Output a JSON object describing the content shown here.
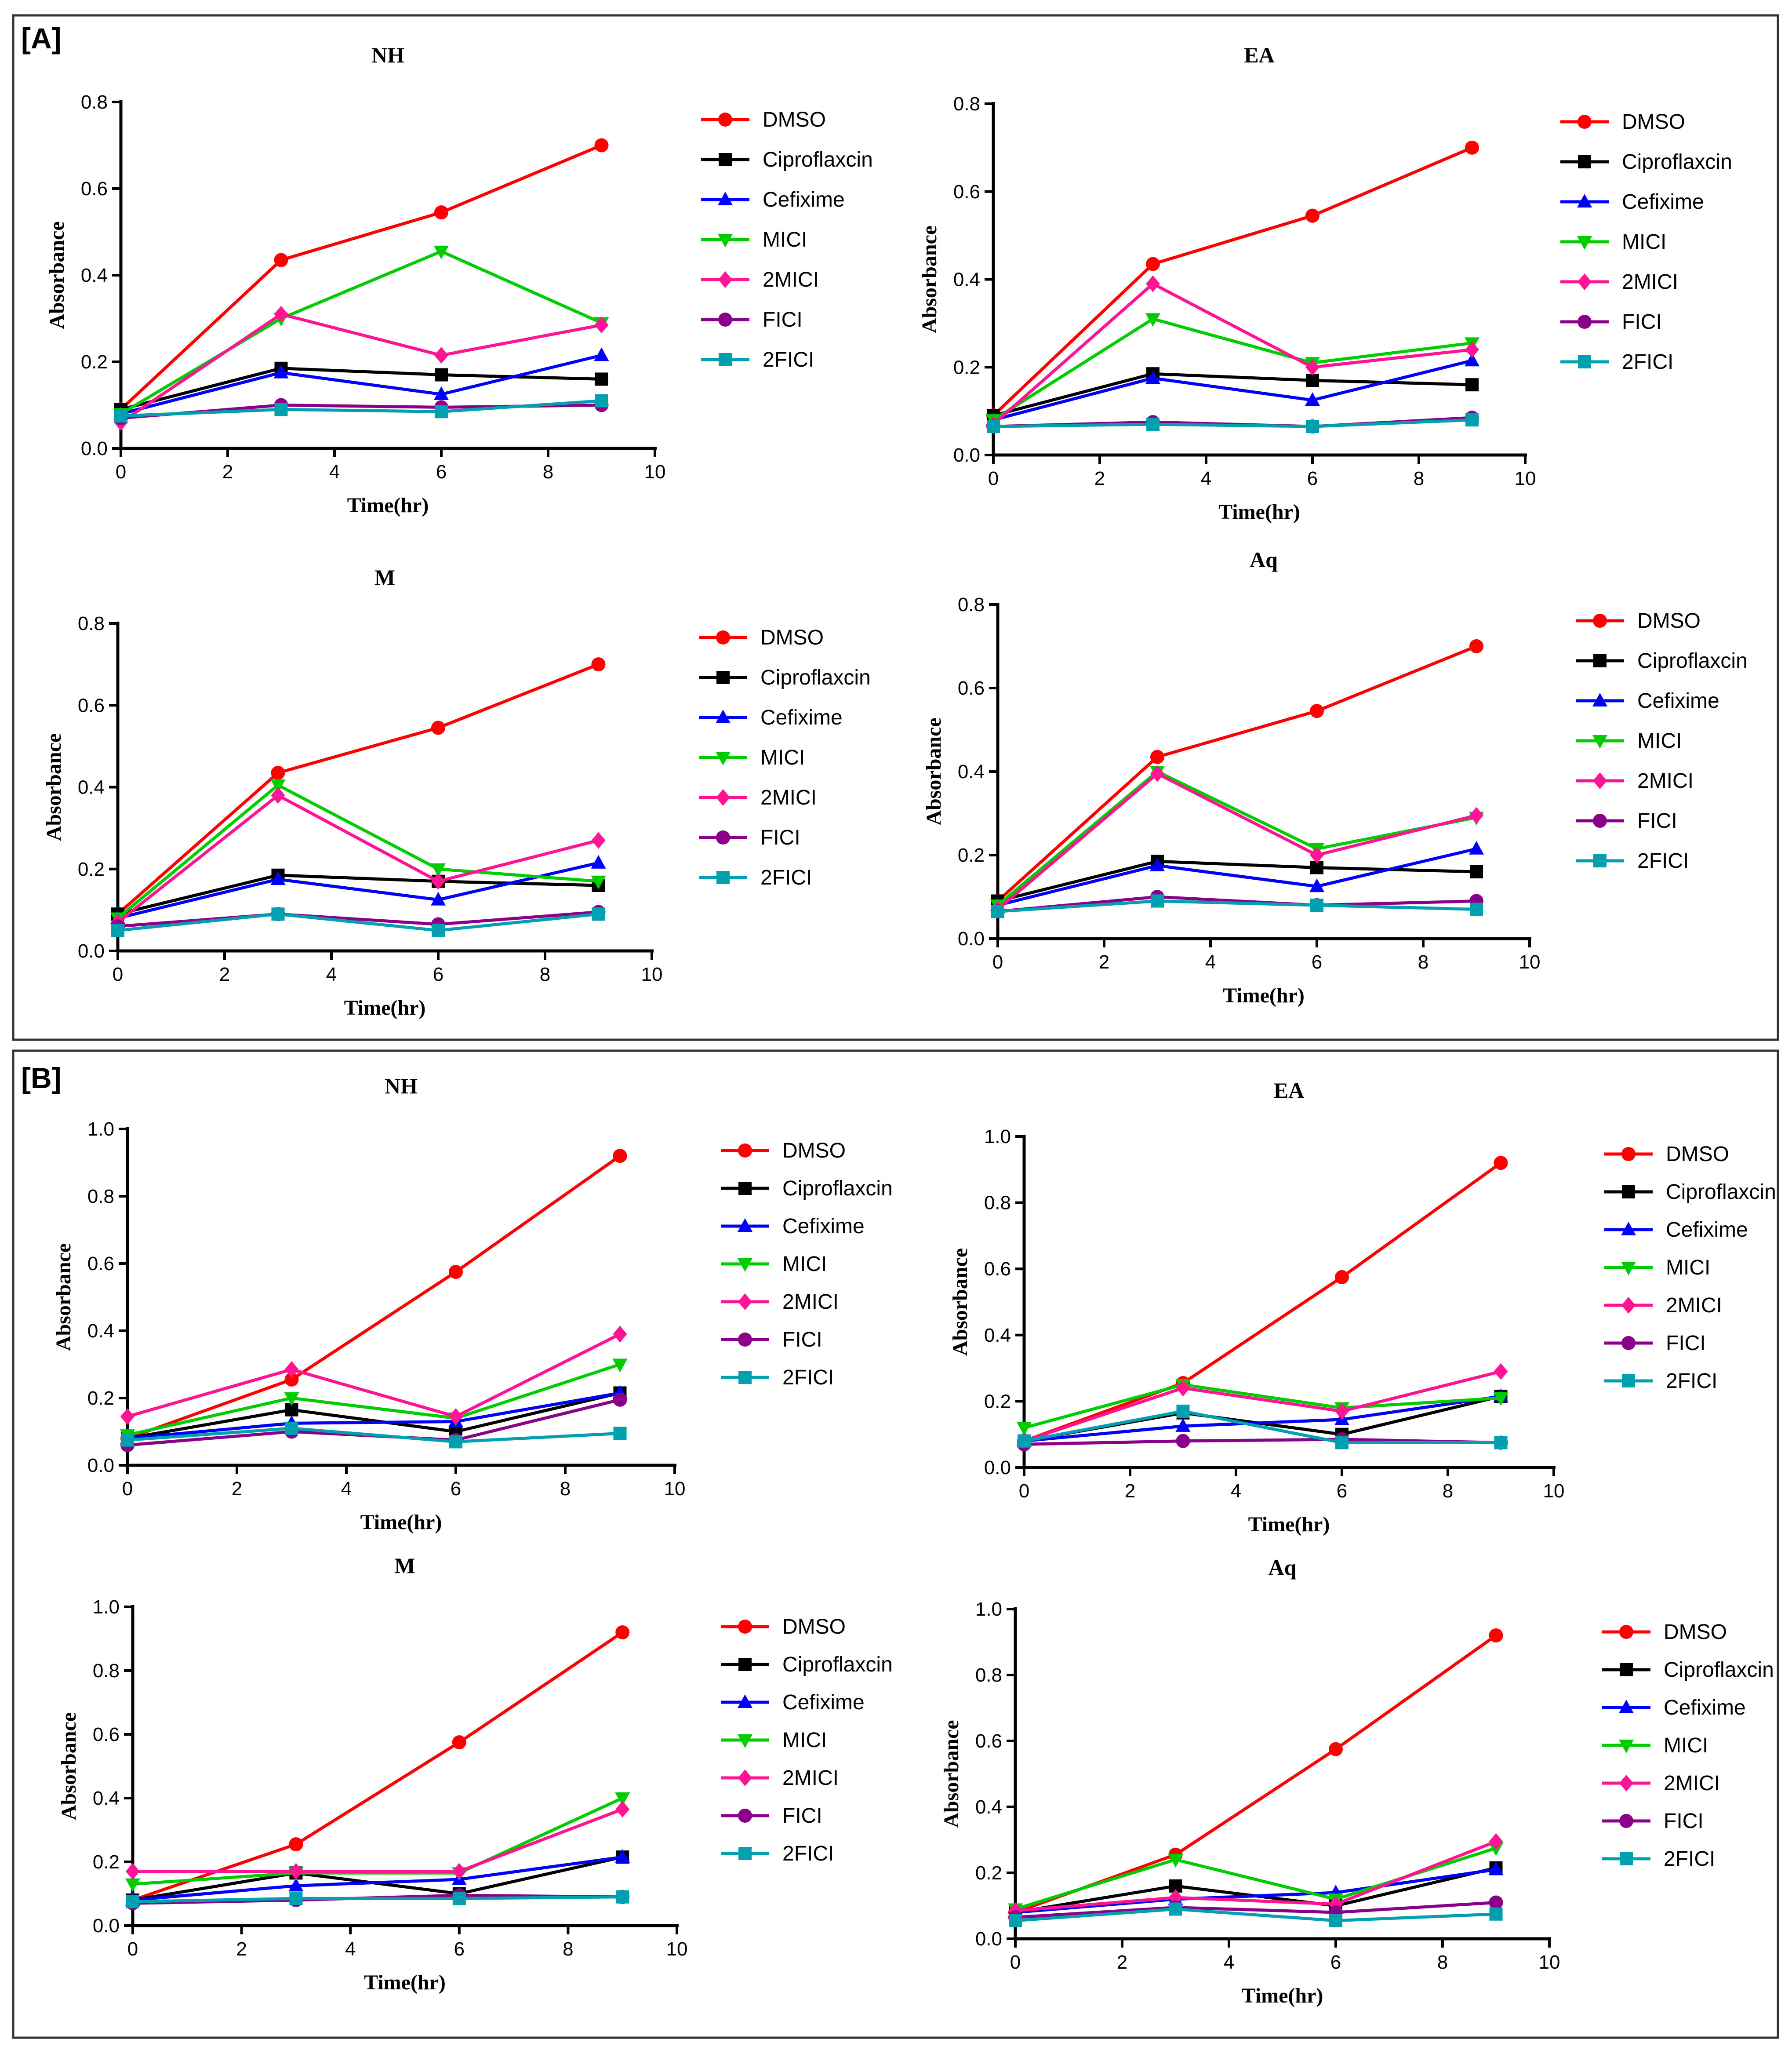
{
  "panels": [
    {
      "label": "[A]"
    },
    {
      "label": "[B]"
    }
  ],
  "styles": {
    "DMSO": {
      "color": "#ff0000",
      "marker": "circle"
    },
    "Ciproflaxcin": {
      "color": "#000000",
      "marker": "square"
    },
    "Cefixime": {
      "color": "#0000ff",
      "marker": "triangle-up"
    },
    "MICI": {
      "color": "#00cc00",
      "marker": "triangle-down"
    },
    "2MICI": {
      "color": "#ff1493",
      "marker": "diamond"
    },
    "FICI": {
      "color": "#8b008b",
      "marker": "circle"
    },
    "2FICI": {
      "color": "#00a0b0",
      "marker": "square"
    }
  },
  "chart_data": [
    {
      "type": "line",
      "panel": "[A]",
      "title": "NH",
      "xlabel": "Time(hr)",
      "ylabel": "Absorbance",
      "xlim": [
        0,
        10
      ],
      "ylim": [
        0,
        0.8
      ],
      "xticks": [
        "0",
        "2",
        "4",
        "6",
        "8",
        "10"
      ],
      "yticks": [
        "0.0",
        "0.2",
        "0.4",
        "0.6",
        "0.8"
      ],
      "x": [
        0,
        3,
        6,
        9
      ],
      "series": [
        {
          "name": "DMSO",
          "values": [
            0.09,
            0.435,
            0.545,
            0.7
          ]
        },
        {
          "name": "Ciproflaxcin",
          "values": [
            0.09,
            0.185,
            0.17,
            0.16
          ]
        },
        {
          "name": "Cefixime",
          "values": [
            0.08,
            0.175,
            0.125,
            0.215
          ]
        },
        {
          "name": "MICI",
          "values": [
            0.08,
            0.3,
            0.455,
            0.29
          ]
        },
        {
          "name": "2MICI",
          "values": [
            0.06,
            0.31,
            0.215,
            0.285
          ]
        },
        {
          "name": "FICI",
          "values": [
            0.07,
            0.1,
            0.095,
            0.1
          ]
        },
        {
          "name": "2FICI",
          "values": [
            0.075,
            0.09,
            0.085,
            0.11
          ]
        }
      ]
    },
    {
      "type": "line",
      "panel": "[A]",
      "title": "EA",
      "xlabel": "Time(hr)",
      "ylabel": "Absorbance",
      "xlim": [
        0,
        10
      ],
      "ylim": [
        0,
        0.8
      ],
      "xticks": [
        "0",
        "2",
        "4",
        "6",
        "8",
        "10"
      ],
      "yticks": [
        "0.0",
        "0.2",
        "0.4",
        "0.6",
        "0.8"
      ],
      "x": [
        0,
        3,
        6,
        9
      ],
      "series": [
        {
          "name": "DMSO",
          "values": [
            0.09,
            0.435,
            0.545,
            0.7
          ]
        },
        {
          "name": "Ciproflaxcin",
          "values": [
            0.09,
            0.185,
            0.17,
            0.16
          ]
        },
        {
          "name": "Cefixime",
          "values": [
            0.08,
            0.175,
            0.125,
            0.215
          ]
        },
        {
          "name": "MICI",
          "values": [
            0.08,
            0.31,
            0.21,
            0.255
          ]
        },
        {
          "name": "2MICI",
          "values": [
            0.07,
            0.39,
            0.2,
            0.24
          ]
        },
        {
          "name": "FICI",
          "values": [
            0.065,
            0.075,
            0.065,
            0.085
          ]
        },
        {
          "name": "2FICI",
          "values": [
            0.065,
            0.07,
            0.065,
            0.08
          ]
        }
      ]
    },
    {
      "type": "line",
      "panel": "[A]",
      "title": "M",
      "xlabel": "Time(hr)",
      "ylabel": "Absorbance",
      "xlim": [
        0,
        10
      ],
      "ylim": [
        0,
        0.8
      ],
      "xticks": [
        "0",
        "2",
        "4",
        "6",
        "8",
        "10"
      ],
      "yticks": [
        "0.0",
        "0.2",
        "0.4",
        "0.6",
        "0.8"
      ],
      "x": [
        0,
        3,
        6,
        9
      ],
      "series": [
        {
          "name": "DMSO",
          "values": [
            0.09,
            0.435,
            0.545,
            0.7
          ]
        },
        {
          "name": "Ciproflaxcin",
          "values": [
            0.09,
            0.185,
            0.17,
            0.16
          ]
        },
        {
          "name": "Cefixime",
          "values": [
            0.08,
            0.175,
            0.125,
            0.215
          ]
        },
        {
          "name": "MICI",
          "values": [
            0.08,
            0.405,
            0.2,
            0.17
          ]
        },
        {
          "name": "2MICI",
          "values": [
            0.07,
            0.38,
            0.17,
            0.27
          ]
        },
        {
          "name": "FICI",
          "values": [
            0.06,
            0.09,
            0.065,
            0.095
          ]
        },
        {
          "name": "2FICI",
          "values": [
            0.05,
            0.09,
            0.05,
            0.09
          ]
        }
      ]
    },
    {
      "type": "line",
      "panel": "[A]",
      "title": "Aq",
      "xlabel": "Time(hr)",
      "ylabel": "Absorbance",
      "xlim": [
        0,
        10
      ],
      "ylim": [
        0,
        0.8
      ],
      "xticks": [
        "0",
        "2",
        "4",
        "6",
        "8",
        "10"
      ],
      "yticks": [
        "0.0",
        "0.2",
        "0.4",
        "0.6",
        "0.8"
      ],
      "x": [
        0,
        3,
        6,
        9
      ],
      "series": [
        {
          "name": "DMSO",
          "values": [
            0.09,
            0.435,
            0.545,
            0.7
          ]
        },
        {
          "name": "Ciproflaxcin",
          "values": [
            0.09,
            0.185,
            0.17,
            0.16
          ]
        },
        {
          "name": "Cefixime",
          "values": [
            0.08,
            0.175,
            0.125,
            0.215
          ]
        },
        {
          "name": "MICI",
          "values": [
            0.08,
            0.4,
            0.215,
            0.29
          ]
        },
        {
          "name": "2MICI",
          "values": [
            0.07,
            0.395,
            0.2,
            0.295
          ]
        },
        {
          "name": "FICI",
          "values": [
            0.065,
            0.1,
            0.08,
            0.09
          ]
        },
        {
          "name": "2FICI",
          "values": [
            0.065,
            0.09,
            0.08,
            0.07
          ]
        }
      ]
    },
    {
      "type": "line",
      "panel": "[B]",
      "title": "NH",
      "xlabel": "Time(hr)",
      "ylabel": "Absorbance",
      "xlim": [
        0,
        10
      ],
      "ylim": [
        0,
        1.0
      ],
      "xticks": [
        "0",
        "2",
        "4",
        "6",
        "8",
        "10"
      ],
      "yticks": [
        "0.0",
        "0.2",
        "0.4",
        "0.6",
        "0.8",
        "1.0"
      ],
      "x": [
        0,
        3,
        6,
        9
      ],
      "series": [
        {
          "name": "DMSO",
          "values": [
            0.08,
            0.255,
            0.575,
            0.92
          ]
        },
        {
          "name": "Ciproflaxcin",
          "values": [
            0.08,
            0.165,
            0.1,
            0.215
          ]
        },
        {
          "name": "Cefixime",
          "values": [
            0.08,
            0.125,
            0.13,
            0.215
          ]
        },
        {
          "name": "MICI",
          "values": [
            0.09,
            0.2,
            0.14,
            0.3
          ]
        },
        {
          "name": "2MICI",
          "values": [
            0.145,
            0.285,
            0.145,
            0.39
          ]
        },
        {
          "name": "FICI",
          "values": [
            0.06,
            0.1,
            0.075,
            0.195
          ]
        },
        {
          "name": "2FICI",
          "values": [
            0.075,
            0.11,
            0.07,
            0.095
          ]
        }
      ]
    },
    {
      "type": "line",
      "panel": "[B]",
      "title": "EA",
      "xlabel": "Time(hr)",
      "ylabel": "Absorbance",
      "xlim": [
        0,
        10
      ],
      "ylim": [
        0,
        1.0
      ],
      "xticks": [
        "0",
        "2",
        "4",
        "6",
        "8",
        "10"
      ],
      "yticks": [
        "0.0",
        "0.2",
        "0.4",
        "0.6",
        "0.8",
        "1.0"
      ],
      "x": [
        0,
        3,
        6,
        9
      ],
      "series": [
        {
          "name": "DMSO",
          "values": [
            0.08,
            0.255,
            0.575,
            0.92
          ]
        },
        {
          "name": "Ciproflaxcin",
          "values": [
            0.08,
            0.165,
            0.1,
            0.215
          ]
        },
        {
          "name": "Cefixime",
          "values": [
            0.08,
            0.125,
            0.145,
            0.215
          ]
        },
        {
          "name": "MICI",
          "values": [
            0.12,
            0.25,
            0.18,
            0.21
          ]
        },
        {
          "name": "2MICI",
          "values": [
            0.08,
            0.24,
            0.17,
            0.29
          ]
        },
        {
          "name": "FICI",
          "values": [
            0.07,
            0.08,
            0.085,
            0.075
          ]
        },
        {
          "name": "2FICI",
          "values": [
            0.08,
            0.17,
            0.075,
            0.075
          ]
        }
      ]
    },
    {
      "type": "line",
      "panel": "[B]",
      "title": "M",
      "xlabel": "Time(hr)",
      "ylabel": "Absorbance",
      "xlim": [
        0,
        10
      ],
      "ylim": [
        0,
        1.0
      ],
      "xticks": [
        "0",
        "2",
        "4",
        "6",
        "8",
        "10"
      ],
      "yticks": [
        "0.0",
        "0.2",
        "0.4",
        "0.6",
        "0.8",
        "1.0"
      ],
      "x": [
        0,
        3,
        6,
        9
      ],
      "series": [
        {
          "name": "DMSO",
          "values": [
            0.08,
            0.255,
            0.575,
            0.92
          ]
        },
        {
          "name": "Ciproflaxcin",
          "values": [
            0.08,
            0.165,
            0.1,
            0.215
          ]
        },
        {
          "name": "Cefixime",
          "values": [
            0.08,
            0.125,
            0.145,
            0.215
          ]
        },
        {
          "name": "MICI",
          "values": [
            0.13,
            0.165,
            0.165,
            0.4
          ]
        },
        {
          "name": "2MICI",
          "values": [
            0.17,
            0.17,
            0.17,
            0.365
          ]
        },
        {
          "name": "FICI",
          "values": [
            0.07,
            0.08,
            0.095,
            0.09
          ]
        },
        {
          "name": "2FICI",
          "values": [
            0.075,
            0.085,
            0.085,
            0.09
          ]
        }
      ]
    },
    {
      "type": "line",
      "panel": "[B]",
      "title": "Aq",
      "xlabel": "Time(hr)",
      "ylabel": "Absorbance",
      "xlim": [
        0,
        10
      ],
      "ylim": [
        0,
        1.0
      ],
      "xticks": [
        "0",
        "2",
        "4",
        "6",
        "8",
        "10"
      ],
      "yticks": [
        "0.0",
        "0.2",
        "0.4",
        "0.6",
        "0.8",
        "1.0"
      ],
      "x": [
        0,
        3,
        6,
        9
      ],
      "series": [
        {
          "name": "DMSO",
          "values": [
            0.08,
            0.255,
            0.575,
            0.92
          ]
        },
        {
          "name": "Ciproflaxcin",
          "values": [
            0.08,
            0.16,
            0.1,
            0.215
          ]
        },
        {
          "name": "Cefixime",
          "values": [
            0.08,
            0.12,
            0.14,
            0.21
          ]
        },
        {
          "name": "MICI",
          "values": [
            0.09,
            0.24,
            0.12,
            0.275
          ]
        },
        {
          "name": "2MICI",
          "values": [
            0.085,
            0.125,
            0.105,
            0.295
          ]
        },
        {
          "name": "FICI",
          "values": [
            0.065,
            0.095,
            0.08,
            0.11
          ]
        },
        {
          "name": "2FICI",
          "values": [
            0.055,
            0.09,
            0.055,
            0.075
          ]
        }
      ]
    }
  ]
}
